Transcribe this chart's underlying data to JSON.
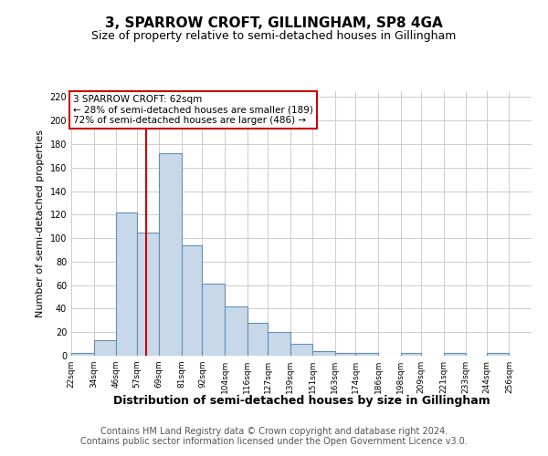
{
  "title": "3, SPARROW CROFT, GILLINGHAM, SP8 4GA",
  "subtitle": "Size of property relative to semi-detached houses in Gillingham",
  "xlabel": "Distribution of semi-detached houses by size in Gillingham",
  "ylabel": "Number of semi-detached properties",
  "footer_line1": "Contains HM Land Registry data © Crown copyright and database right 2024.",
  "footer_line2": "Contains public sector information licensed under the Open Government Licence v3.0.",
  "annotation_line1": "3 SPARROW CROFT: 62sqm",
  "annotation_line2": "← 28% of semi-detached houses are smaller (189)",
  "annotation_line3": "72% of semi-detached houses are larger (486) →",
  "property_size": 62,
  "bar_left_edges": [
    22,
    34,
    46,
    57,
    69,
    81,
    92,
    104,
    116,
    127,
    139,
    151,
    163,
    174,
    186,
    198,
    209,
    221,
    233,
    244
  ],
  "bar_heights": [
    2,
    13,
    122,
    105,
    172,
    94,
    61,
    42,
    28,
    20,
    10,
    4,
    2,
    2,
    0,
    2,
    0,
    2,
    0,
    2
  ],
  "bar_widths": [
    12,
    12,
    11,
    12,
    12,
    11,
    12,
    12,
    11,
    12,
    12,
    12,
    11,
    12,
    12,
    11,
    12,
    12,
    11,
    12
  ],
  "tick_labels": [
    "22sqm",
    "34sqm",
    "46sqm",
    "57sqm",
    "69sqm",
    "81sqm",
    "92sqm",
    "104sqm",
    "116sqm",
    "127sqm",
    "139sqm",
    "151sqm",
    "163sqm",
    "174sqm",
    "186sqm",
    "198sqm",
    "209sqm",
    "221sqm",
    "233sqm",
    "244sqm",
    "256sqm"
  ],
  "tick_positions": [
    22,
    34,
    46,
    57,
    69,
    81,
    92,
    104,
    116,
    127,
    139,
    151,
    163,
    174,
    186,
    198,
    209,
    221,
    233,
    244,
    256
  ],
  "bar_color": "#c8d8e8",
  "bar_edge_color": "#6090b8",
  "vline_color": "#cc0000",
  "vline_x": 62,
  "annotation_box_color": "#cc0000",
  "annotation_bg": "#ffffff",
  "ylim": [
    0,
    225
  ],
  "yticks": [
    0,
    20,
    40,
    60,
    80,
    100,
    120,
    140,
    160,
    180,
    200,
    220
  ],
  "grid_color": "#cccccc",
  "background_color": "#ffffff",
  "title_fontsize": 11,
  "subtitle_fontsize": 9,
  "ylabel_fontsize": 8,
  "xlabel_fontsize": 9,
  "footer_fontsize": 7
}
